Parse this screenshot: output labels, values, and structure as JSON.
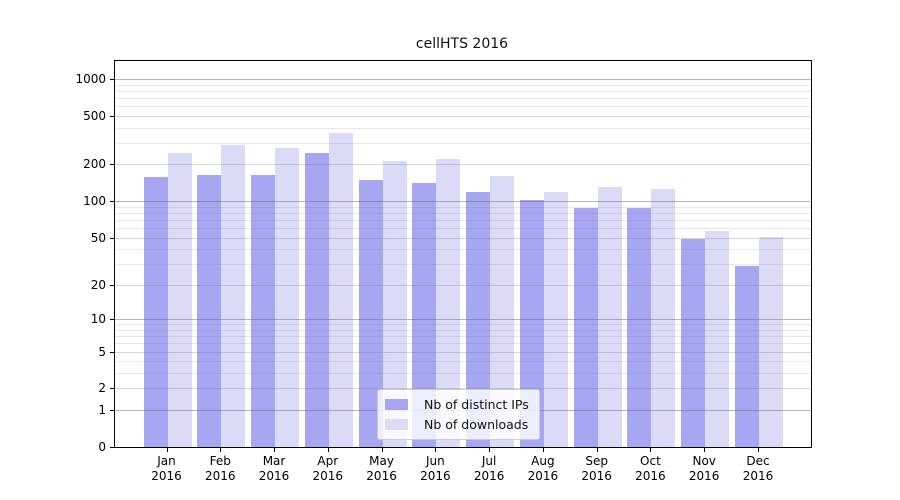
{
  "chart_data": {
    "type": "bar",
    "title": "cellHTS 2016",
    "categories": [
      "Jan 2016",
      "Feb 2016",
      "Mar 2016",
      "Apr 2016",
      "May 2016",
      "Jun 2016",
      "Jul 2016",
      "Aug 2016",
      "Sep 2016",
      "Oct 2016",
      "Nov 2016",
      "Dec 2016"
    ],
    "x_tick_labels_line1": [
      "Jan",
      "Feb",
      "Mar",
      "Apr",
      "May",
      "Jun",
      "Jul",
      "Aug",
      "Sep",
      "Oct",
      "Nov",
      "Dec"
    ],
    "x_tick_labels_line2": [
      "2016",
      "2016",
      "2016",
      "2016",
      "2016",
      "2016",
      "2016",
      "2016",
      "2016",
      "2016",
      "2016",
      "2016"
    ],
    "series": [
      {
        "name": "Nb of distinct IPs",
        "color": "#a6a6f2",
        "values": [
          158,
          164,
          165,
          248,
          150,
          142,
          118,
          102,
          88,
          88,
          49,
          29
        ]
      },
      {
        "name": "Nb of downloads",
        "color": "#dbdbf8",
        "values": [
          247,
          290,
          271,
          365,
          214,
          220,
          161,
          120,
          131,
          126,
          57,
          51
        ]
      }
    ],
    "ylabel": "",
    "xlabel": "",
    "y_scale": "log1p",
    "y_ticks": [
      0,
      1,
      2,
      5,
      10,
      20,
      50,
      100,
      200,
      500,
      1000
    ],
    "y_minor_gridlines": [
      3,
      4,
      6,
      7,
      8,
      9,
      30,
      40,
      60,
      70,
      80,
      90,
      300,
      400,
      600,
      700,
      800,
      900
    ],
    "y_decade_gridlines": [
      1,
      10,
      100,
      1000
    ],
    "ylim": [
      0,
      1400
    ],
    "grid": true,
    "legend_position": "inside-bottom-center"
  },
  "legend": {
    "item1": "Nb of distinct IPs",
    "item2": "Nb of downloads"
  },
  "colors": {
    "distinct_ips_bar": "#a6a6f2",
    "downloads_bar": "#dbdbf8",
    "gridline_major": "#b7b7b7",
    "gridline_mid": "#d5d5d5",
    "gridline_minor": "#e8e8e8",
    "axis": "#000000",
    "background": "#ffffff"
  }
}
